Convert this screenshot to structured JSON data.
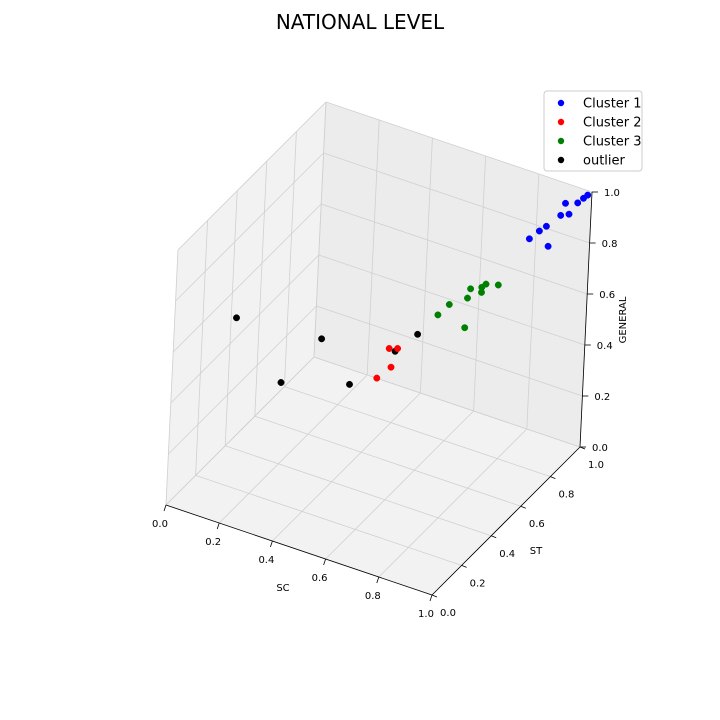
{
  "chart_data": {
    "type": "scatter",
    "title": "NATIONAL LEVEL",
    "xlabel": "SC",
    "ylabel": "ST",
    "zlabel": "GENERAL",
    "xlim": [
      0,
      1
    ],
    "ylim": [
      0,
      1
    ],
    "zlim": [
      0,
      1
    ],
    "ticks": {
      "x": [
        "0.0",
        "0.2",
        "0.4",
        "0.6",
        "0.8",
        "1.0"
      ],
      "y": [
        "0.0",
        "0.2",
        "0.4",
        "0.6",
        "0.8",
        "1.0"
      ],
      "z": [
        "0.0",
        "0.2",
        "0.4",
        "0.6",
        "0.8",
        "1.0"
      ]
    },
    "grid": true,
    "legend_position": "top-right",
    "series": [
      {
        "name": "Cluster 1",
        "color": "#0000ff",
        "points": [
          [
            0.99,
            0.99,
            0.99
          ],
          [
            0.97,
            0.96,
            0.97
          ],
          [
            0.98,
            0.98,
            0.98
          ],
          [
            0.93,
            0.92,
            0.93
          ],
          [
            0.95,
            0.94,
            0.93
          ],
          [
            0.9,
            0.88,
            0.9
          ],
          [
            0.88,
            0.87,
            0.88
          ],
          [
            0.92,
            0.86,
            0.84
          ],
          [
            0.93,
            0.95,
            0.96
          ],
          [
            0.86,
            0.84,
            0.86
          ]
        ]
      },
      {
        "name": "Cluster 2",
        "color": "#ff0000",
        "points": [
          [
            0.59,
            0.4,
            0.59
          ],
          [
            0.6,
            0.44,
            0.57
          ],
          [
            0.6,
            0.4,
            0.52
          ],
          [
            0.57,
            0.36,
            0.49
          ]
        ]
      },
      {
        "name": "Cluster 3",
        "color": "#008000",
        "points": [
          [
            0.69,
            0.62,
            0.67
          ],
          [
            0.74,
            0.67,
            0.72
          ],
          [
            0.76,
            0.71,
            0.71
          ],
          [
            0.77,
            0.72,
            0.72
          ],
          [
            0.76,
            0.71,
            0.69
          ],
          [
            0.73,
            0.67,
            0.68
          ],
          [
            0.8,
            0.75,
            0.71
          ],
          [
            0.66,
            0.6,
            0.63
          ],
          [
            0.73,
            0.66,
            0.57
          ]
        ]
      },
      {
        "name": "outlier",
        "color": "#000000",
        "points": [
          [
            0.15,
            0.15,
            0.7
          ],
          [
            0.38,
            0.32,
            0.6
          ],
          [
            0.63,
            0.52,
            0.59
          ],
          [
            0.56,
            0.5,
            0.51
          ],
          [
            0.3,
            0.2,
            0.47
          ],
          [
            0.47,
            0.36,
            0.43
          ]
        ]
      }
    ]
  }
}
